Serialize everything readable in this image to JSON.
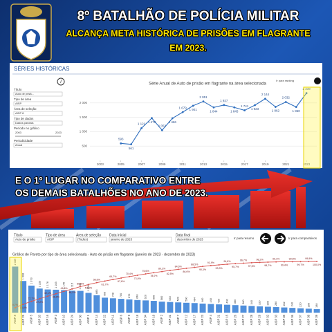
{
  "header": {
    "title": "8º BATALHÃO DE POLÍCIA MILITAR",
    "subtitle_lines": [
      "ALCANÇA META HISTÓRICA DE PRISÕES EM FLAGRANTE",
      "EM 2023."
    ]
  },
  "history_panel": {
    "heading": "SÉRIES HISTÓRICAS",
    "link": "Ir para ranking",
    "filters": [
      {
        "label": "Título",
        "value": "Auto de prisã..."
      },
      {
        "label": "Tipo de área",
        "value": "AISP"
      },
      {
        "label": "Área de seleção",
        "value": "AISP 8"
      },
      {
        "label": "Tipo de dados",
        "value": "Dados parciais"
      }
    ],
    "period": {
      "label": "Período no gráfico",
      "start": "2003",
      "end": "2023"
    },
    "periodicity": {
      "label": "Periodicidade",
      "value": "Anual"
    }
  },
  "banner_lines": [
    "E O 1º LUGAR NO COMPARATIVO ENTRE",
    "OS DEMAIS BATALHÕES NO ANO DE 2023."
  ],
  "pareto_panel": {
    "filters": [
      {
        "label": "Título",
        "value": "Auto de prisão"
      },
      {
        "label": "Tipo de área",
        "value": "AISP"
      },
      {
        "label": "Área de seleção",
        "value": "(Todos)"
      },
      {
        "label": "Data inicial",
        "value": "janeiro de 2023"
      },
      {
        "label": "Data final",
        "value": "dezembro de 2023"
      }
    ],
    "link_left": "Ir para resumo",
    "link_right": "Ir para comparativos"
  },
  "chart_data": [
    {
      "type": "line",
      "title": "Série Anual de Auto de prisão em flagrante na área selecionada",
      "x": [
        2005,
        2006,
        2007,
        2008,
        2009,
        2010,
        2011,
        2012,
        2013,
        2014,
        2015,
        2016,
        2017,
        2018,
        2019,
        2020,
        2021,
        2022,
        2023
      ],
      "values": [
        593,
        561,
        1121,
        1472,
        1053,
        1466,
        1679,
        1901,
        2051,
        1844,
        1927,
        1845,
        1741,
        1923,
        2144,
        1862,
        2032,
        1860,
        2339
      ],
      "value_labels": [
        "593",
        "561",
        "1 121",
        "1 472",
        "1 053",
        "1 466",
        "1 679",
        "1 901",
        "2 051",
        "1 844",
        "1 927",
        "1 845",
        "1 741",
        "1 923",
        "2 144",
        "1 862",
        "2 032",
        "1 860",
        "2 339"
      ],
      "color": "#2f6fbf",
      "xlim": [
        2002,
        2024
      ],
      "xticks": [
        2003,
        2005,
        2007,
        2009,
        2011,
        2013,
        2015,
        2017,
        2019,
        2021,
        2023
      ],
      "ylim": [
        0,
        2500
      ],
      "yticks": [
        500,
        {
          "value": 1000,
          "label": "1 000"
        },
        {
          "value": 1500,
          "label": "1 500"
        },
        {
          "value": 2000,
          "label": "2 000"
        }
      ],
      "grid": true
    },
    {
      "type": "bar",
      "title": "Gráfico de Pareto por tipo de área selecionada - Auto de prisão em flagrante (janeiro de 2023 - dezembro de 2023)",
      "categories": [
        "AISP 8",
        "AISP 25",
        "AISP 5",
        "AISP 20",
        "AISP 16",
        "AISP 3",
        "AISP 10",
        "AISP 24",
        "AISP 30",
        "AISP 1",
        "AISP 14",
        "AISP 22",
        "AISP 11",
        "AISP 6",
        "AISP 9",
        "AISP 18",
        "AISP 34",
        "AISP 19",
        "AISP 2",
        "AISP 31",
        "AISP 7",
        "AISP 12",
        "AISP 17",
        "AISP 23",
        "AISP 4",
        "AISP 21",
        "AISP 15",
        "AISP 26",
        "AISP 27",
        "AISP 28",
        "AISP 29",
        "AISP 32",
        "AISP 33",
        "AISP 35",
        "AISP 36",
        "AISP 37",
        "AISP 38",
        "AISP 39"
      ],
      "ylim": [
        0,
        2600
      ],
      "y2lim": [
        0,
        100
      ],
      "series": [
        {
          "name": "Auto de prisão em flagrante",
          "color": "#4f8fdc",
          "values": [
            2339,
            1608,
            1373,
            1223,
            1176,
            1163,
            1145,
            1115,
            1105,
            1004,
            885,
            760,
            728,
            700,
            672,
            640,
            620,
            596,
            560,
            540,
            520,
            500,
            484,
            460,
            440,
            420,
            400,
            380,
            360,
            340,
            320,
            300,
            280,
            262,
            240,
            220,
            200,
            180
          ],
          "value_labels": [
            "2 339",
            "1 608",
            "1 373",
            "1 223",
            "1 176",
            "1 163",
            "1 145",
            "1 115",
            "1 105",
            "1 004",
            "885",
            "760",
            "728",
            "700",
            "672",
            "640",
            "620",
            "596",
            "560",
            "540",
            "520",
            "500",
            "484",
            "460",
            "440",
            "420",
            "400",
            "380",
            "360",
            "340",
            "320",
            "300",
            "280",
            "262",
            "240",
            "220",
            "200",
            "180"
          ]
        },
        {
          "name": "% acumulado",
          "color": "#d9534f",
          "axis": "y2",
          "values": [
            9.7,
            16.4,
            22.1,
            27.2,
            32.1,
            36.9,
            41.6,
            46.2,
            50.8,
            54.9,
            58.6,
            61.7,
            64.7,
            67.6,
            70.4,
            73.0,
            75.6,
            78.0,
            80.3,
            82.5,
            84.6,
            86.6,
            88.5,
            90.3,
            91.9,
            93.3,
            94.6,
            95.7,
            96.7,
            97.5,
            98.2,
            98.7,
            99.1,
            99.4,
            99.5,
            99.7,
            99.9,
            100.0
          ],
          "value_labels": [
            "9,7%",
            "16,4%",
            "22,1%",
            "27,2%",
            "32,1%",
            "36,9%",
            "41,6%",
            "46,2%",
            "50,8%",
            "54,9%",
            "58,6%",
            "61,7%",
            "64,7%",
            "67,6%",
            "70,4%",
            "73,0%",
            "75,6%",
            "78,0%",
            "80,3%",
            "82,5%",
            "84,6%",
            "86,6%",
            "88,5%",
            "90,3%",
            "91,9%",
            "93,3%",
            "94,6%",
            "95,7%",
            "96,7%",
            "97,5%",
            "98,2%",
            "98,7%",
            "99,1%",
            "99,4%",
            "99,5%",
            "99,7%",
            "99,9%",
            "100,0%"
          ]
        }
      ]
    }
  ]
}
